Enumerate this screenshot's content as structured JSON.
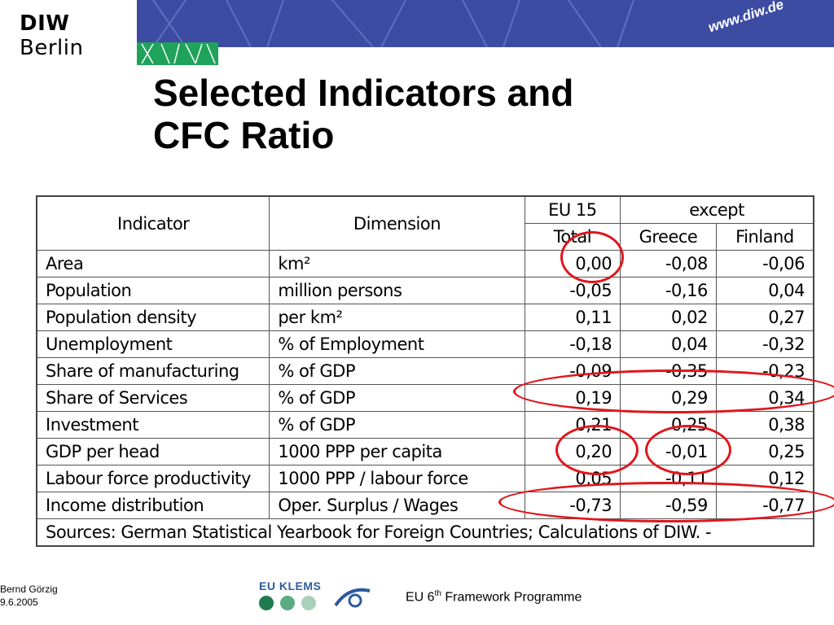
{
  "header": {
    "logo_bold": "DIW",
    "logo_rest": " Berlin",
    "url": "www.diw.de"
  },
  "title_lines": [
    "Selected Indicators and",
    "CFC Ratio"
  ],
  "table": {
    "header_indicator": "Indicator",
    "header_dimension": "Dimension",
    "header_eu15": "EU 15",
    "header_except": "except",
    "header_total": "Total",
    "header_greece": "Greece",
    "header_finland": "Finland",
    "rows": [
      {
        "indicator": "Area",
        "dimension": "km²",
        "total": "0,00",
        "greece": "-0,08",
        "finland": "-0,06"
      },
      {
        "indicator": "Population",
        "dimension": "million persons",
        "total": "-0,05",
        "greece": "-0,16",
        "finland": "0,04"
      },
      {
        "indicator": "Population density",
        "dimension": "per km²",
        "total": "0,11",
        "greece": "0,02",
        "finland": "0,27"
      },
      {
        "indicator": "Unemployment",
        "dimension": "% of Employment",
        "total": "-0,18",
        "greece": "0,04",
        "finland": "-0,32"
      },
      {
        "indicator": "Share of manufacturing",
        "dimension": "% of GDP",
        "total": "-0,09",
        "greece": "-0,35",
        "finland": "-0,23"
      },
      {
        "indicator": "Share of Services",
        "dimension": "% of GDP",
        "total": "0,19",
        "greece": "0,29",
        "finland": "0,34"
      },
      {
        "indicator": "Investment",
        "dimension": "% of GDP",
        "total": "0,21",
        "greece": "0,25",
        "finland": "0,38"
      },
      {
        "indicator": "GDP per head",
        "dimension": "1000 PPP per capita",
        "total": "0,20",
        "greece": "-0,01",
        "finland": "0,25"
      },
      {
        "indicator": "Labour force productivity",
        "dimension": "1000 PPP / labour force",
        "total": "0,05",
        "greece": "-0,11",
        "finland": "0,12"
      },
      {
        "indicator": "Income distribution",
        "dimension": "Oper. Surplus / Wages",
        "total": "-0,73",
        "greece": "-0,59",
        "finland": "-0,77"
      }
    ],
    "sources": "Sources: German Statistical Yearbook for  Foreign Countries; Calculations of DIW. -"
  },
  "colors": {
    "banner": "#3c4ca3",
    "green": "#1fa35b",
    "highlight": "#e0161c",
    "dot_dark": "#1f7a4d",
    "dot_mid": "#5bab82",
    "dot_light": "#a9d1b9"
  },
  "footer": {
    "author": "Bernd Görzig",
    "date": "9.6.2005",
    "klems_label": "EU KLEMS",
    "program_prefix": "EU 6",
    "program_sup": "th",
    "program_suffix": " Framework Programme"
  }
}
